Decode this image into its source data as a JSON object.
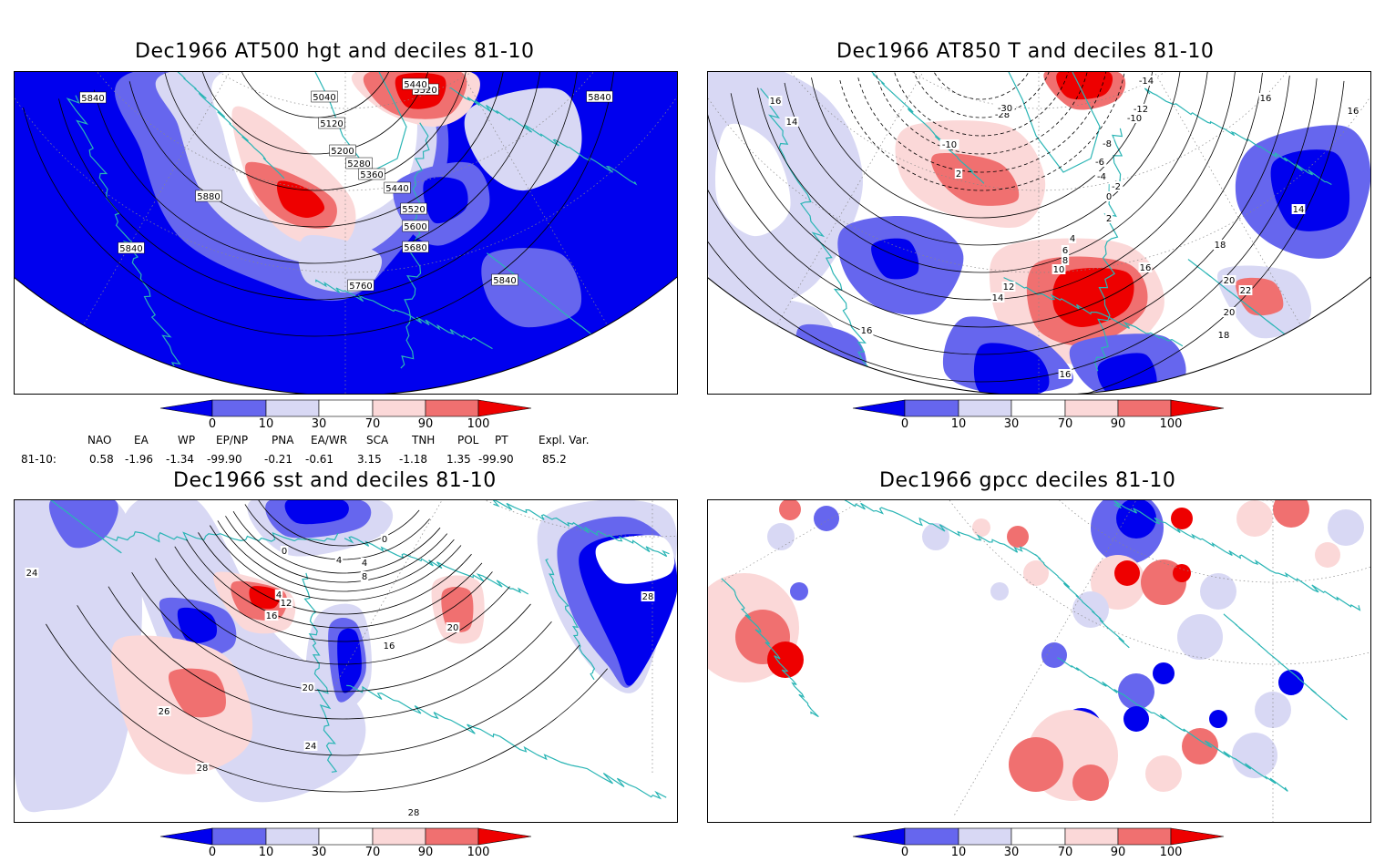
{
  "panels": [
    {
      "id": "hgt",
      "title": "Dec1966 AT500 hgt and deciles 81-10",
      "contour_labels": [
        "5840",
        "5040",
        "5120",
        "5520",
        "5440",
        "5200",
        "5280",
        "5360",
        "5440",
        "5520",
        "5600",
        "5680",
        "5880",
        "5840",
        "5760",
        "5840",
        "5840"
      ]
    },
    {
      "id": "t850",
      "title": "Dec1966 AT850 T and deciles 81-10",
      "contour_labels": [
        "16",
        "-14",
        "-12",
        "-10",
        "-8",
        "-6",
        "-4",
        "-2",
        "0",
        "2",
        "2",
        "4",
        "6",
        "8",
        "10",
        "12",
        "14",
        "16",
        "18",
        "20",
        "22",
        "20",
        "18",
        "16",
        "16",
        "16",
        "14",
        "-28",
        "-30",
        "-10",
        "16",
        "14"
      ]
    },
    {
      "id": "sst",
      "title": "Dec1966 sst and deciles 81-10",
      "contour_labels": [
        "0",
        "0",
        "4",
        "4",
        "8",
        "4",
        "12",
        "16",
        "20",
        "24",
        "28",
        "26",
        "28",
        "16",
        "20",
        "24",
        "28"
      ]
    },
    {
      "id": "gpcc",
      "title": "Dec1966 gpcc deciles 81-10",
      "contour_labels": []
    }
  ],
  "colorbar": {
    "ticks": [
      "0",
      "10",
      "30",
      "70",
      "90",
      "100"
    ],
    "colors": {
      "lowest": "#0000ee",
      "low": "#6666ee",
      "lowmid": "#d8d8f4",
      "mid": "#ffffff",
      "highmid": "#fbd8d8",
      "high": "#f07070",
      "highest": "#ee0000"
    }
  },
  "indices": {
    "headers": [
      "NAO",
      "EA",
      "WP",
      "EP/NP",
      "PNA",
      "EA/WR",
      "SCA",
      "TNH",
      "POL",
      "PT",
      "Expl. Var."
    ],
    "row_label": "81-10:",
    "values": [
      "0.58",
      "-1.96",
      "-1.34",
      "-99.90",
      "-0.21",
      "-0.61",
      "3.15",
      "-1.18",
      "1.35",
      "-99.90",
      "85.2"
    ]
  },
  "colors": {
    "coast": "#2ab5b5",
    "contour": "#000000",
    "grid": "#888888"
  }
}
